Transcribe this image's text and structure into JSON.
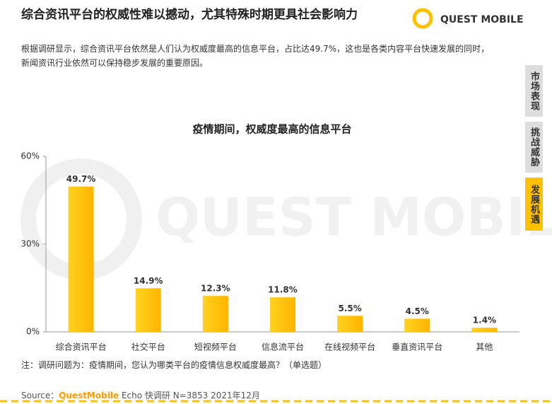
{
  "header": {
    "title": "综合资讯平台的权威性难以撼动，尤其特殊时期更具社会影响力",
    "logo": "QUEST MOBILE"
  },
  "description": [
    "根据调研显示，综合资讯平台依然是人们认为权威度最高的信息平台，占比达49.7%，这也是各类内容平台快速发展的同时，",
    "新闻资讯行业依然可以保持稳步发展的重要原因。"
  ],
  "side_tabs": [
    "市场表现",
    "挑战威胁",
    "发展机遇"
  ],
  "watermark": "QUEST MOBILE",
  "chart_data": {
    "type": "bar",
    "title": "疫情期间，权威度最高的信息平台",
    "categories": [
      "综合资讯平台",
      "社交平台",
      "短视频平台",
      "信息流平台",
      "在线视频平台",
      "垂直资讯平台",
      "其他"
    ],
    "values": [
      49.7,
      14.9,
      12.3,
      11.8,
      5.5,
      4.5,
      1.4
    ],
    "value_labels": [
      "49.7%",
      "14.9%",
      "12.3%",
      "11.8%",
      "5.5%",
      "4.5%",
      "1.4%"
    ],
    "color": "#ffc000",
    "ylim": [
      0,
      60
    ],
    "yticks": [
      {
        "value": 0,
        "label": "0%"
      },
      {
        "value": 30,
        "label": "30%"
      },
      {
        "value": 60,
        "label": "60%"
      }
    ],
    "grid": false
  },
  "note": "注：调研问题为：疫情期间，您认为哪类平台的疫情信息权威度最高？（单选题）",
  "source": {
    "label": "Source：",
    "brand": "QuestMobile",
    "rest": "Echo 快调研 N=3853 2021年12月"
  }
}
